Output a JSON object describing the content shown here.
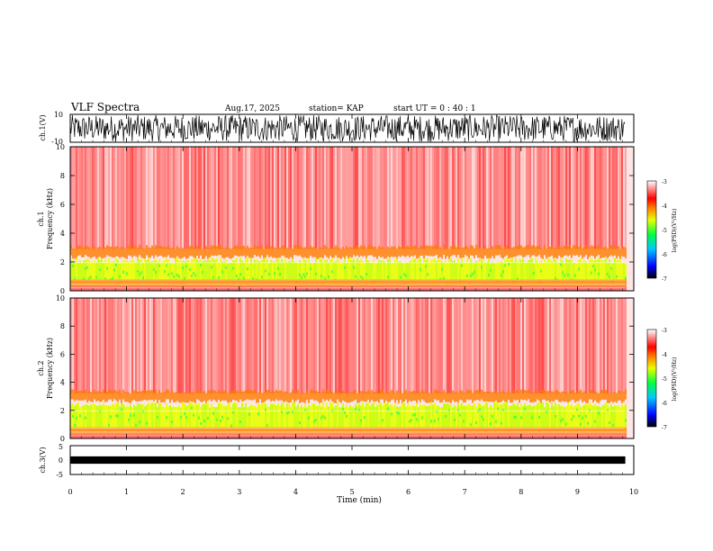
{
  "header": {
    "title": "VLF Spectra",
    "date": "Aug.17, 2025",
    "station": "station= KAP",
    "start": "start  UT  =   0 : 40 : 1"
  },
  "chart_data": [
    {
      "type": "line",
      "name": "ch1-waveform",
      "ylabel": "ch.1(V)",
      "ylim": [
        -10,
        10
      ],
      "yticks": [
        "10",
        "-10"
      ],
      "x_range_min": [
        0,
        9.85
      ],
      "description_level": "dense broadband signal spanning roughly -9 to +9 V"
    },
    {
      "type": "heatmap",
      "name": "ch1-spectrogram",
      "ylabel": "ch.1\nFrequency  (kHz)",
      "ylabel_lines": [
        "ch.1",
        "Frequency  (kHz)"
      ],
      "ylim": [
        0,
        10
      ],
      "yticks": [
        "0",
        "2",
        "4",
        "6",
        "8",
        "10"
      ],
      "xlim": [
        0,
        10
      ],
      "colorbar": {
        "label": "log(PSD)(V²/Hz)",
        "range": [
          -7,
          -3
        ],
        "ticks": [
          "-3",
          "-4",
          "-5",
          "-6",
          "-7"
        ]
      }
    },
    {
      "type": "heatmap",
      "name": "ch2-spectrogram",
      "ylabel_lines": [
        "ch.2",
        "Frequency  (kHz)"
      ],
      "ylim": [
        0,
        10
      ],
      "yticks": [
        "0",
        "2",
        "4",
        "6",
        "8",
        "10"
      ],
      "xlim": [
        0,
        10
      ],
      "colorbar": {
        "label": "log(PSD)(V²/Hz)",
        "range": [
          -7,
          -3
        ],
        "ticks": [
          "-3",
          "-4",
          "-5",
          "-6",
          "-7"
        ]
      }
    },
    {
      "type": "line",
      "name": "ch3-waveform",
      "ylabel": "ch.3(V)",
      "ylim": [
        -5,
        5
      ],
      "yticks": [
        "5",
        "0",
        "-5"
      ],
      "level_range": [
        -0.5,
        0.5
      ]
    }
  ],
  "xaxis": {
    "label": "Time  (min)",
    "ticks": [
      "0",
      "1",
      "2",
      "3",
      "4",
      "5",
      "6",
      "7",
      "8",
      "9",
      "10"
    ],
    "range": [
      0,
      10
    ]
  }
}
